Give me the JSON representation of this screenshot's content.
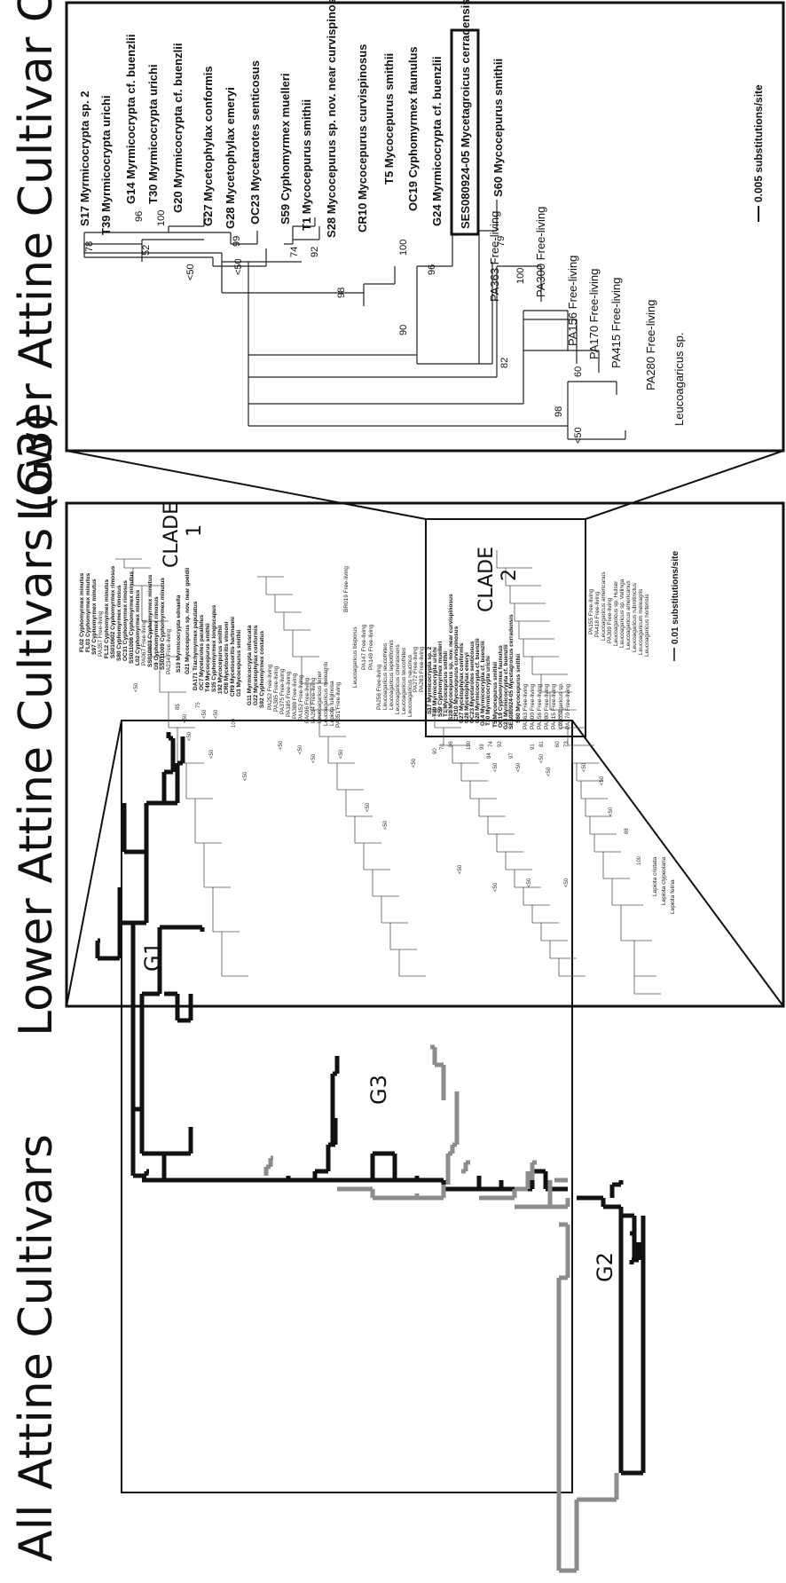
{
  "panels": {
    "left": {
      "title": "All Attine Cultivars",
      "group_labels": [
        "G1",
        "G3",
        "G2"
      ]
    },
    "middle": {
      "title": "Lower Attine Cultivars (G3)",
      "clade1_label": "CLADE\n1",
      "clade2_label": "CLADE\n2",
      "scale_label": "0.01 substitutions/site",
      "tips": [
        {
          "name": "FL02 Cyphomyrmex minutus",
          "bold": true
        },
        {
          "name": "FL03 Cyphomyrmex minutus",
          "bold": true
        },
        {
          "name": "S97 Cyphomyrmex minutus",
          "bold": true
        },
        {
          "name": "PA357 Free-living",
          "bold": false
        },
        {
          "name": "FL12 Cyphomyrmex minutus",
          "bold": true
        },
        {
          "name": "SS010602 Cyphomyrmex rimosus",
          "bold": true
        },
        {
          "name": "S80 Cyphomyrmex rimosus",
          "bold": true
        },
        {
          "name": "OC31 Cyphomyrmex rimosus",
          "bold": true
        },
        {
          "name": "SS011006 Cyphomyrmex minutus",
          "bold": true
        },
        {
          "name": "L02 Cyphomyrmex minutus",
          "bold": true
        },
        {
          "name": "PA067 Free-living",
          "bold": false
        },
        {
          "name": "SS010803 Cyphomyrmex minutus",
          "bold": true
        },
        {
          "name": "G9 Cyphomyrmex rimosus",
          "bold": true
        },
        {
          "name": "SS011009 Cyphomyrmex minutus",
          "bold": true
        },
        {
          "name": "PA234 Free-living",
          "bold": false
        },
        {
          "name": "S19 Myrmicocrypta ednaella",
          "bold": true
        },
        {
          "name": "G21 Mycocepurus sp. nov. near goeldii",
          "bold": true
        },
        {
          "name": "DA171 Trachymyrmex papulatus",
          "bold": true
        },
        {
          "name": "OC7 Mycetarotes parallelus",
          "bold": true
        },
        {
          "name": "T49 Mycocepurus smithii",
          "bold": true
        },
        {
          "name": "S35 Cyphomyrmex longiscapus",
          "bold": true
        },
        {
          "name": "192 Mycocepurus smithii",
          "bold": true
        },
        {
          "name": "CR8 Mycetosoritis vinsoni",
          "bold": true
        },
        {
          "name": "CR9 Mycetosoritis hartmanni",
          "bold": true
        },
        {
          "name": "G3 Mycocepurus smithii",
          "bold": true
        },
        {
          "name": "G11 Myrmicocrypta infuscata",
          "bold": true
        },
        {
          "name": "G22 Mycetophylax conformis",
          "bold": true
        },
        {
          "name": "S92 Cyphomyrmex costatus",
          "bold": true
        },
        {
          "name": "PA252 Free-living",
          "bold": false
        },
        {
          "name": "PA305 Free-living",
          "bold": false
        },
        {
          "name": "PA375 Free-living",
          "bold": false
        },
        {
          "name": "PA185 Free-living",
          "bold": false
        },
        {
          "name": "PA388 Free-living",
          "bold": false
        },
        {
          "name": "PA152 Free-living",
          "bold": false
        },
        {
          "name": "PA096 Free-living",
          "bold": false
        },
        {
          "name": "PA294 Free-living",
          "bold": false
        },
        {
          "name": "Leucoagaricus tener",
          "bold": false
        },
        {
          "name": "Leucoagaricus meleagris",
          "bold": false
        },
        {
          "name": "Lepiota fuliginosa",
          "bold": false
        },
        {
          "name": "PA351 Free-living",
          "bold": false
        },
        {
          "name": "BR019 Free-living",
          "bold": false
        },
        {
          "name": "Leucoagaricus bisporus",
          "bold": false
        },
        {
          "name": "PA147 Free-living",
          "bold": false
        },
        {
          "name": "PA149 Free-living",
          "bold": false
        },
        {
          "name": "PA256 Free-living",
          "bold": false
        },
        {
          "name": "Leucoagaricus leucothites",
          "bold": false
        },
        {
          "name": "Leucoagaricus lepiotiformis",
          "bold": false
        },
        {
          "name": "Leucoagaricus cinerascens",
          "bold": false
        },
        {
          "name": "Leucoagaricus leucothites",
          "bold": false
        },
        {
          "name": "Leucoagaricus naucinus",
          "bold": false
        },
        {
          "name": "PA272 Free-living",
          "bold": false
        },
        {
          "name": "PA283 Free-living",
          "bold": false
        },
        {
          "name": "S17 Myrmicocrypta sp. 2",
          "bold": true
        },
        {
          "name": "T39 Myrmicocrypta urichi",
          "bold": true
        },
        {
          "name": "S59 Cyphomyrmex muelleri",
          "bold": true
        },
        {
          "name": "T1 Mycocepurus smithii",
          "bold": true
        },
        {
          "name": "S28 Mycocepurus sp. nov. near curvispinosus",
          "bold": true
        },
        {
          "name": "CR10 Mycocepurus curvispinosus",
          "bold": true
        },
        {
          "name": "G27 Mycetophylax conformis",
          "bold": true
        },
        {
          "name": "G28 Mycetophylax emeryi",
          "bold": true
        },
        {
          "name": "OC23 Mycetarotes senticosus",
          "bold": true
        },
        {
          "name": "G20 Myrmicocrypta cf. buenzlii",
          "bold": true
        },
        {
          "name": "G14 Myrmicocrypta cf. buenzlii",
          "bold": true
        },
        {
          "name": "T30 Myrmicocrypta urichi",
          "bold": true
        },
        {
          "name": "T5 Mycocepurus smithii",
          "bold": true
        },
        {
          "name": "OC19 Cyphomyrmex faunulus",
          "bold": true
        },
        {
          "name": "G24 Myrmicocrypta cf. buenzlii",
          "bold": true
        },
        {
          "name": "SES080924-05 Mycetagroicus cerradensis",
          "bold": true
        },
        {
          "name": "S60 Mycocepurus smithii",
          "bold": true
        },
        {
          "name": "PA363 Free-living",
          "bold": false
        },
        {
          "name": "PA300 Free-living",
          "bold": false
        },
        {
          "name": "PA156 Free-living",
          "bold": false
        },
        {
          "name": "PA280 Free-living",
          "bold": false
        },
        {
          "name": "PA415 Free-living",
          "bold": false
        },
        {
          "name": "Leucoagaricus sp.",
          "bold": false
        },
        {
          "name": "PA170 Free-living",
          "bold": false
        },
        {
          "name": "PA155 Free-living",
          "bold": false
        },
        {
          "name": "PA418 Free-living",
          "bold": false
        },
        {
          "name": "Leucoagaricus americanus",
          "bold": false
        },
        {
          "name": "PA309 Free-living",
          "bold": false
        },
        {
          "name": "Leucoagaricus sp. Hulser",
          "bold": false
        },
        {
          "name": "Leucoagaricus sp. Vellinga",
          "bold": false
        },
        {
          "name": "Leucoagaricus americanus",
          "bold": false
        },
        {
          "name": "Leucoagaricus rubrotinctus",
          "bold": false
        },
        {
          "name": "Leucoagaricum meleagris",
          "bold": false
        },
        {
          "name": "Leucoagaricus hortensis",
          "bold": false
        },
        {
          "name": "Lepiota cristata",
          "bold": false
        },
        {
          "name": "Lepiota clypeolaria",
          "bold": false
        },
        {
          "name": "Lepiota felina",
          "bold": false
        }
      ],
      "support_values": [
        "90",
        "78",
        "96",
        "100",
        "99",
        "74",
        "92",
        "84",
        "<50",
        "<50",
        "97",
        "91",
        "81",
        "60",
        "73",
        "<50",
        "<50",
        "<50",
        "100",
        "<50",
        "<50",
        "75",
        "85",
        "<50",
        "<50",
        "<50",
        "<50",
        "<50",
        "<50",
        "<50",
        "<50",
        "<50",
        "<50",
        "<50",
        "<50",
        "<50",
        "<50",
        "<50",
        "<50",
        "88",
        "100",
        "<50",
        "<50"
      ]
    },
    "right": {
      "title": "Lower Attine Cultivar Clade 2",
      "scale_label": "0.005 substitutions/site",
      "tips": [
        {
          "name": "S17 Myrmicocrypta sp. 2",
          "bold": true,
          "boxed": false
        },
        {
          "name": "T39 Myrmicocrypta urichi",
          "bold": true,
          "boxed": false
        },
        {
          "name": "G14 Myrmicocrypta cf. buenzlii",
          "bold": true,
          "boxed": false
        },
        {
          "name": "T30 Myrmicocrypta urichi",
          "bold": true,
          "boxed": false
        },
        {
          "name": "G20 Myrmicocrypta cf. buenzlii",
          "bold": true,
          "boxed": false
        },
        {
          "name": "G27 Mycetophylax conformis",
          "bold": true,
          "boxed": false
        },
        {
          "name": "G28 Mycetophylax emeryi",
          "bold": true,
          "boxed": false
        },
        {
          "name": "OC23 Mycetarotes senticosus",
          "bold": true,
          "boxed": false
        },
        {
          "name": "S59 Cyphomyrmex muelleri",
          "bold": true,
          "boxed": false
        },
        {
          "name": "T1 Mycocepurus smithii",
          "bold": true,
          "boxed": false
        },
        {
          "name": "S28 Mycocepurus sp. nov. near curvispinosus",
          "bold": true,
          "boxed": false
        },
        {
          "name": "CR10 Mycocepurus curvispinosus",
          "bold": true,
          "boxed": false
        },
        {
          "name": "T5 Mycocepurus smithii",
          "bold": true,
          "boxed": false
        },
        {
          "name": "OC19 Cyphomyrmex faunulus",
          "bold": true,
          "boxed": false
        },
        {
          "name": "G24 Myrmicocrypta cf. buenzlii",
          "bold": true,
          "boxed": false
        },
        {
          "name": "SES080924-05 Mycetagroicus cerradensis",
          "bold": true,
          "boxed": true
        },
        {
          "name": "S60 Mycocepurus smithii",
          "bold": true,
          "boxed": false
        },
        {
          "name": "PA363 Free-living",
          "bold": false,
          "boxed": false
        },
        {
          "name": "PA300 Free-living",
          "bold": false,
          "boxed": false
        },
        {
          "name": "PA156 Free-living",
          "bold": false,
          "boxed": false
        },
        {
          "name": "PA170 Free-living",
          "bold": false,
          "boxed": false
        },
        {
          "name": "PA415 Free-living",
          "bold": false,
          "boxed": false
        },
        {
          "name": "PA280 Free-living",
          "bold": false,
          "boxed": false
        },
        {
          "name": "Leucoagaricus sp.",
          "bold": false,
          "boxed": false
        }
      ],
      "support_values": [
        "78",
        "96",
        "100",
        "52",
        "<50",
        "99",
        "74",
        "92",
        "<50",
        "100",
        "96",
        "79",
        "100",
        "98",
        "90",
        "60",
        "82",
        "98",
        "<50"
      ]
    }
  }
}
